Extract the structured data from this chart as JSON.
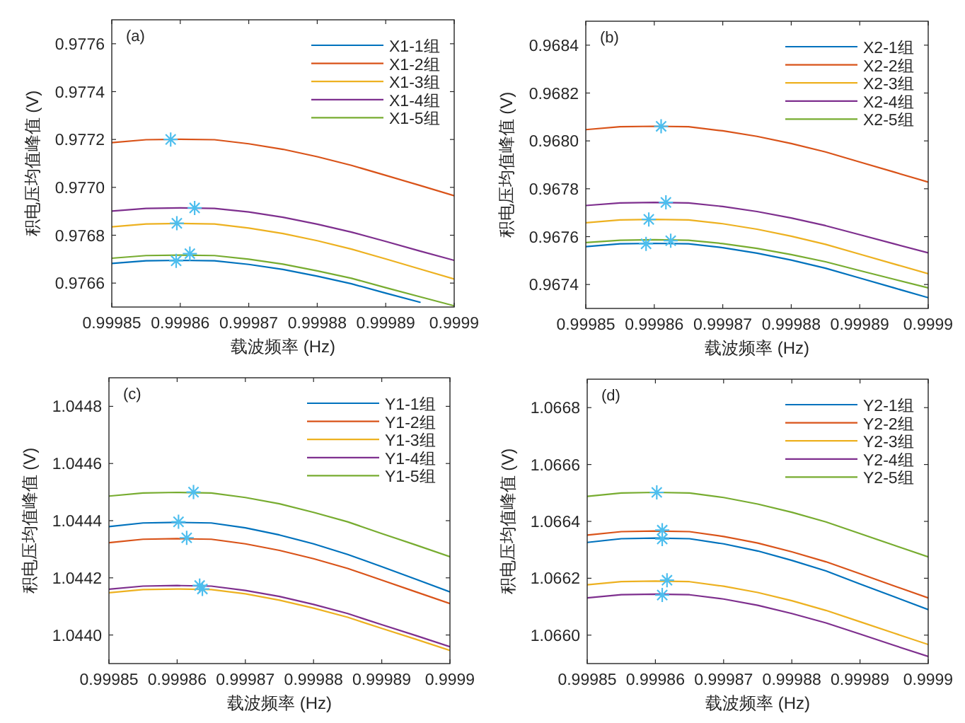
{
  "chart_data": [
    {
      "type": "line",
      "annotations": [
        "(a)"
      ],
      "xlabel": "载波频率 (Hz)",
      "ylabel": "积电压均值峰值 (V)",
      "legend": "top right",
      "xlim": [
        0.99985,
        0.9999
      ],
      "xticks": [
        0.99985,
        0.99986,
        0.99987,
        0.99988,
        0.99989,
        0.9999
      ],
      "ylim": [
        0.9765,
        0.9777
      ],
      "yticks": [
        0.9766,
        0.9768,
        {
          "value": 0.977,
          "label": "0.9770"
        },
        0.9772,
        0.9774,
        0.9776
      ],
      "x": [
        0.99985,
        0.999855,
        0.99986,
        0.999865,
        0.99987,
        0.999875,
        0.99988,
        0.999885,
        0.99989,
        0.999895,
        0.9999
      ],
      "series": [
        {
          "name": "X1-1组",
          "color": "#0072bd",
          "values": [
            0.976682,
            0.976693,
            0.976695,
            0.976693,
            0.976678,
            0.976657,
            0.976629,
            0.976597,
            0.976558,
            0.97652,
            null
          ]
        },
        {
          "name": "X1-2组",
          "color": "#d95319",
          "values": [
            0.977187,
            0.977199,
            0.977201,
            0.977199,
            0.977182,
            0.977159,
            0.977128,
            0.977092,
            0.97705,
            0.977008,
            0.976965
          ]
        },
        {
          "name": "X1-3组",
          "color": "#edb120",
          "values": [
            0.976835,
            0.976847,
            0.976849,
            0.976847,
            0.97683,
            0.976807,
            0.976777,
            0.976742,
            0.976701,
            0.976659,
            0.976617
          ]
        },
        {
          "name": "X1-4组",
          "color": "#7e2f8e",
          "values": [
            0.976901,
            0.976912,
            0.976914,
            0.976912,
            0.976897,
            0.976875,
            0.976846,
            0.976813,
            0.976774,
            0.976734,
            0.976695
          ]
        },
        {
          "name": "X1-5组",
          "color": "#77ac30",
          "values": [
            0.976704,
            0.976715,
            0.976717,
            0.976715,
            0.9767,
            0.976679,
            0.976651,
            0.97662,
            0.976581,
            0.976543,
            0.976505
          ]
        },
        {
          "type": "scatter",
          "marker": "cross",
          "color": "#4dbeee",
          "x": [
            0.9998594,
            0.9998586,
            0.9998595,
            0.9998621,
            0.9998614
          ],
          "values": [
            0.976693,
            0.9772,
            0.97685,
            0.976914,
            0.976723
          ]
        }
      ]
    },
    {
      "type": "line",
      "annotations": [
        "(b)"
      ],
      "xlabel": "载波频率 (Hz)",
      "ylabel": "积电压均值峰值 (V)",
      "legend": "top right",
      "xlim": [
        0.99985,
        0.9999
      ],
      "xticks": [
        0.99985,
        0.99986,
        0.99987,
        0.99988,
        0.99989,
        0.9999
      ],
      "ylim": [
        0.9673,
        0.9685
      ],
      "yticks": [
        0.9674,
        0.9676,
        0.9678,
        {
          "value": 0.968,
          "label": "0.9680"
        },
        0.9682,
        0.9684
      ],
      "x": [
        0.99985,
        0.999855,
        0.99986,
        0.999865,
        0.99987,
        0.999875,
        0.99988,
        0.999885,
        0.99989,
        0.999895,
        0.9999
      ],
      "series": [
        {
          "name": "X2-1组",
          "color": "#0072bd",
          "values": [
            0.967558,
            0.96757,
            0.967572,
            0.96757,
            0.967554,
            0.967531,
            0.967502,
            0.967468,
            0.967427,
            0.967386,
            0.967345
          ]
        },
        {
          "name": "X2-2组",
          "color": "#d95319",
          "values": [
            0.968047,
            0.968059,
            0.968061,
            0.968059,
            0.968042,
            0.968019,
            0.967989,
            0.967954,
            0.967912,
            0.96787,
            0.967828
          ]
        },
        {
          "name": "X2-3组",
          "color": "#edb120",
          "values": [
            0.967658,
            0.96767,
            0.967672,
            0.96767,
            0.967654,
            0.967631,
            0.967602,
            0.967568,
            0.967527,
            0.967486,
            0.967445
          ]
        },
        {
          "name": "X2-4组",
          "color": "#7e2f8e",
          "values": [
            0.96773,
            0.967741,
            0.967743,
            0.967741,
            0.967726,
            0.967705,
            0.967678,
            0.967646,
            0.967608,
            0.96757,
            0.967532
          ]
        },
        {
          "name": "X2-5组",
          "color": "#77ac30",
          "values": [
            0.967575,
            0.967585,
            0.967587,
            0.967585,
            0.967571,
            0.967551,
            0.967525,
            0.967495,
            0.967458,
            0.967422,
            0.967386
          ]
        },
        {
          "type": "scatter",
          "marker": "cross",
          "color": "#4dbeee",
          "x": [
            0.9998588,
            0.999861,
            0.9998592,
            0.9998617,
            0.9998624
          ],
          "values": [
            0.96757,
            0.968061,
            0.967672,
            0.967743,
            0.967583
          ]
        }
      ]
    },
    {
      "type": "line",
      "annotations": [
        "(c)"
      ],
      "xlabel": "载波频率 (Hz)",
      "ylabel": "积电压均值峰值 (V)",
      "legend": "top right",
      "xlim": [
        0.99985,
        0.9999
      ],
      "xticks": [
        0.99985,
        0.99986,
        0.99987,
        0.99988,
        0.99989,
        0.9999
      ],
      "ylim": [
        1.0439,
        1.0449
      ],
      "yticks": [
        {
          "value": 1.044,
          "label": "1.0440"
        },
        1.0442,
        1.0444,
        1.0446,
        1.0448
      ],
      "x": [
        0.99985,
        0.999855,
        0.99986,
        0.999865,
        0.99987,
        0.999875,
        0.99988,
        0.999885,
        0.99989,
        0.999895,
        0.9999
      ],
      "series": [
        {
          "name": "Y1-1组",
          "color": "#0072bd",
          "values": [
            1.044379,
            1.044392,
            1.044394,
            1.044392,
            1.044375,
            1.04435,
            1.044319,
            1.044282,
            1.044239,
            1.044195,
            1.044151
          ]
        },
        {
          "name": "Y1-2组",
          "color": "#d95319",
          "values": [
            1.044323,
            1.044335,
            1.044337,
            1.044335,
            1.044319,
            1.044296,
            1.044267,
            1.044233,
            1.044192,
            1.044151,
            1.04411
          ]
        },
        {
          "name": "Y1-3组",
          "color": "#edb120",
          "values": [
            1.044148,
            1.044159,
            1.044161,
            1.044159,
            1.044144,
            1.044122,
            1.044094,
            1.044062,
            1.044023,
            1.043985,
            1.043946
          ]
        },
        {
          "name": "Y1-4组",
          "color": "#7e2f8e",
          "values": [
            1.04416,
            1.044171,
            1.044173,
            1.044171,
            1.044156,
            1.044135,
            1.044107,
            1.044075,
            1.044036,
            1.043998,
            1.043959
          ]
        },
        {
          "name": "Y1-5组",
          "color": "#77ac30",
          "values": [
            1.044486,
            1.044497,
            1.044499,
            1.044497,
            1.044481,
            1.044459,
            1.044429,
            1.044396,
            1.044355,
            1.044315,
            1.044274
          ]
        },
        {
          "type": "scatter",
          "marker": "cross",
          "color": "#4dbeee",
          "x": [
            0.9998602,
            0.9998614,
            0.9998637,
            0.9998633,
            0.9998624
          ],
          "values": [
            1.044396,
            1.04434,
            1.044161,
            1.044173,
            1.0445
          ]
        }
      ]
    },
    {
      "type": "line",
      "annotations": [
        "(d)"
      ],
      "xlabel": "载波频率 (Hz)",
      "ylabel": "积电压均值峰值 (V)",
      "legend": "top right",
      "xlim": [
        0.99985,
        0.9999
      ],
      "xticks": [
        0.99985,
        0.99986,
        0.99987,
        0.99988,
        0.99989,
        0.9999
      ],
      "ylim": [
        1.0659,
        1.0669
      ],
      "yticks": [
        {
          "value": 1.066,
          "label": "1.0660"
        },
        1.0662,
        1.0664,
        1.0666,
        1.0668
      ],
      "x": [
        0.99985,
        0.999855,
        0.99986,
        0.999865,
        0.99987,
        0.999875,
        0.99988,
        0.999885,
        0.99989,
        0.999895,
        0.9999
      ],
      "series": [
        {
          "name": "Y2-1组",
          "color": "#0072bd",
          "values": [
            1.066326,
            1.066339,
            1.066341,
            1.066339,
            1.066321,
            1.066296,
            1.066263,
            1.066226,
            1.06618,
            1.066135,
            1.06609
          ]
        },
        {
          "name": "Y2-2组",
          "color": "#d95319",
          "values": [
            1.066352,
            1.066364,
            1.066366,
            1.066364,
            1.066347,
            1.066324,
            1.066293,
            1.066258,
            1.066216,
            1.066173,
            1.066131
          ]
        },
        {
          "name": "Y2-3组",
          "color": "#edb120",
          "values": [
            1.066177,
            1.066188,
            1.06619,
            1.066188,
            1.066172,
            1.06615,
            1.066121,
            1.066087,
            1.066047,
            1.066007,
            1.065967
          ]
        },
        {
          "name": "Y2-4组",
          "color": "#7e2f8e",
          "values": [
            1.066131,
            1.066142,
            1.066144,
            1.066142,
            1.066127,
            1.066105,
            1.066076,
            1.066043,
            1.066004,
            1.065964,
            1.065925
          ]
        },
        {
          "name": "Y2-5组",
          "color": "#77ac30",
          "values": [
            1.066488,
            1.0665,
            1.066502,
            1.0665,
            1.066484,
            1.066461,
            1.066432,
            1.066398,
            1.066357,
            1.066316,
            1.066275
          ]
        },
        {
          "type": "scatter",
          "marker": "cross",
          "color": "#4dbeee",
          "x": [
            0.999861,
            0.999861,
            0.9998617,
            0.999861,
            0.9998602
          ],
          "values": [
            1.066338,
            1.066369,
            1.066193,
            1.066141,
            1.066502
          ]
        }
      ]
    }
  ]
}
